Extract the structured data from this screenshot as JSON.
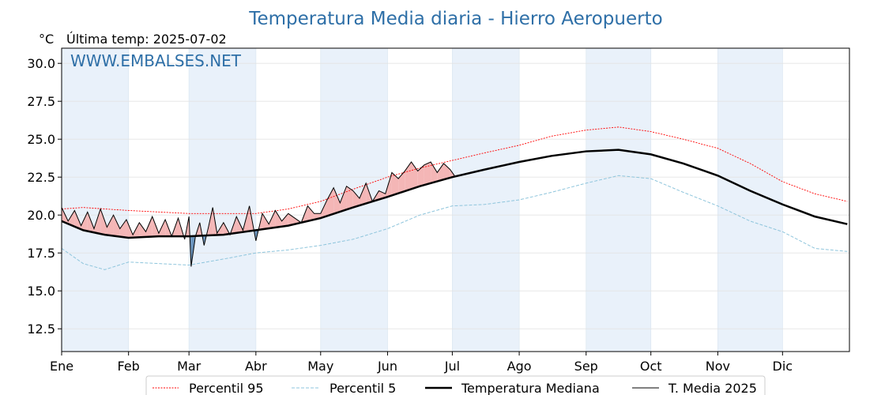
{
  "chart_data": {
    "type": "line",
    "title": "Temperatura Media diaria - Hierro Aeropuerto",
    "unit_label": "°C",
    "last_temp_label": "Última temp: 2025-07-02",
    "watermark": "WWW.EMBALSES.NET",
    "ylim": [
      11.0,
      31.0
    ],
    "yticks": [
      "12.5",
      "15.0",
      "17.5",
      "20.0",
      "22.5",
      "25.0",
      "27.5",
      "30.0"
    ],
    "ytick_values": [
      12.5,
      15.0,
      17.5,
      20.0,
      22.5,
      25.0,
      27.5,
      30.0
    ],
    "months": [
      "Ene",
      "Feb",
      "Mar",
      "Abr",
      "May",
      "Jun",
      "Jul",
      "Ago",
      "Sep",
      "Oct",
      "Nov",
      "Dic"
    ],
    "month_start_days": [
      0,
      31,
      59,
      90,
      120,
      151,
      181,
      212,
      243,
      273,
      304,
      334
    ],
    "year_days": 365,
    "grid": true,
    "legend_position": "bottom",
    "colors": {
      "title": "#2e6fa7",
      "p95": "#ff0000",
      "p5": "#8ec5dc",
      "median": "#000000",
      "current": "#000000",
      "fill_above": "#f4b6b6",
      "fill_below": "#6b95be",
      "shade": "#e9f1fa"
    },
    "series": [
      {
        "name": "Percentil 95",
        "key": "p95",
        "x": [
          0,
          10,
          20,
          31,
          45,
          59,
          75,
          90,
          105,
          120,
          135,
          151,
          166,
          181,
          196,
          212,
          227,
          243,
          258,
          273,
          288,
          304,
          319,
          334,
          349,
          364
        ],
        "values": [
          20.4,
          20.5,
          20.4,
          20.3,
          20.2,
          20.1,
          20.1,
          20.1,
          20.4,
          20.9,
          21.7,
          22.5,
          23.1,
          23.6,
          24.1,
          24.6,
          25.2,
          25.6,
          25.8,
          25.5,
          25.0,
          24.4,
          23.4,
          22.2,
          21.4,
          20.9
        ]
      },
      {
        "name": "Percentil 5",
        "key": "p5",
        "x": [
          0,
          10,
          20,
          31,
          45,
          59,
          75,
          90,
          105,
          120,
          135,
          151,
          166,
          181,
          196,
          212,
          227,
          243,
          258,
          273,
          288,
          304,
          319,
          334,
          349,
          364
        ],
        "values": [
          17.8,
          16.8,
          16.4,
          16.9,
          16.8,
          16.7,
          17.1,
          17.5,
          17.7,
          18.0,
          18.4,
          19.1,
          20.0,
          20.6,
          20.7,
          21.0,
          21.5,
          22.1,
          22.6,
          22.4,
          21.5,
          20.6,
          19.6,
          18.9,
          17.8,
          17.6
        ]
      },
      {
        "name": "Temperatura Mediana",
        "key": "median",
        "x": [
          0,
          10,
          20,
          31,
          45,
          59,
          75,
          90,
          105,
          120,
          135,
          151,
          166,
          181,
          196,
          212,
          227,
          243,
          258,
          273,
          288,
          304,
          319,
          334,
          349,
          364
        ],
        "values": [
          19.6,
          19.0,
          18.7,
          18.5,
          18.6,
          18.6,
          18.7,
          19.0,
          19.3,
          19.8,
          20.5,
          21.2,
          21.9,
          22.5,
          23.0,
          23.5,
          23.9,
          24.2,
          24.3,
          24.0,
          23.4,
          22.6,
          21.6,
          20.7,
          19.9,
          19.4
        ]
      },
      {
        "name": "T. Media 2025",
        "key": "current",
        "x": [
          0,
          3,
          6,
          9,
          12,
          15,
          18,
          21,
          24,
          27,
          30,
          33,
          36,
          39,
          42,
          45,
          48,
          51,
          54,
          57,
          59,
          60,
          62,
          64,
          66,
          68,
          70,
          72,
          75,
          78,
          81,
          84,
          87,
          90,
          93,
          96,
          99,
          102,
          105,
          108,
          111,
          114,
          117,
          120,
          123,
          126,
          129,
          132,
          135,
          138,
          141,
          144,
          147,
          150,
          153,
          156,
          159,
          162,
          165,
          168,
          171,
          174,
          177,
          180,
          182
        ],
        "values": [
          20.5,
          19.6,
          20.3,
          19.3,
          20.2,
          19.1,
          20.4,
          19.2,
          20.0,
          19.1,
          19.7,
          18.7,
          19.5,
          18.9,
          19.9,
          18.8,
          19.7,
          18.6,
          19.8,
          18.4,
          19.9,
          16.6,
          18.6,
          19.5,
          18.0,
          19.2,
          20.5,
          18.8,
          19.5,
          18.7,
          19.9,
          19.0,
          20.6,
          18.3,
          20.1,
          19.4,
          20.3,
          19.6,
          20.1,
          19.8,
          19.5,
          20.6,
          20.1,
          20.1,
          21.0,
          21.8,
          20.8,
          21.9,
          21.6,
          21.1,
          22.1,
          20.9,
          21.6,
          21.4,
          22.8,
          22.4,
          22.9,
          23.5,
          22.9,
          23.3,
          23.5,
          22.8,
          23.4,
          23.0,
          22.6
        ]
      }
    ]
  }
}
